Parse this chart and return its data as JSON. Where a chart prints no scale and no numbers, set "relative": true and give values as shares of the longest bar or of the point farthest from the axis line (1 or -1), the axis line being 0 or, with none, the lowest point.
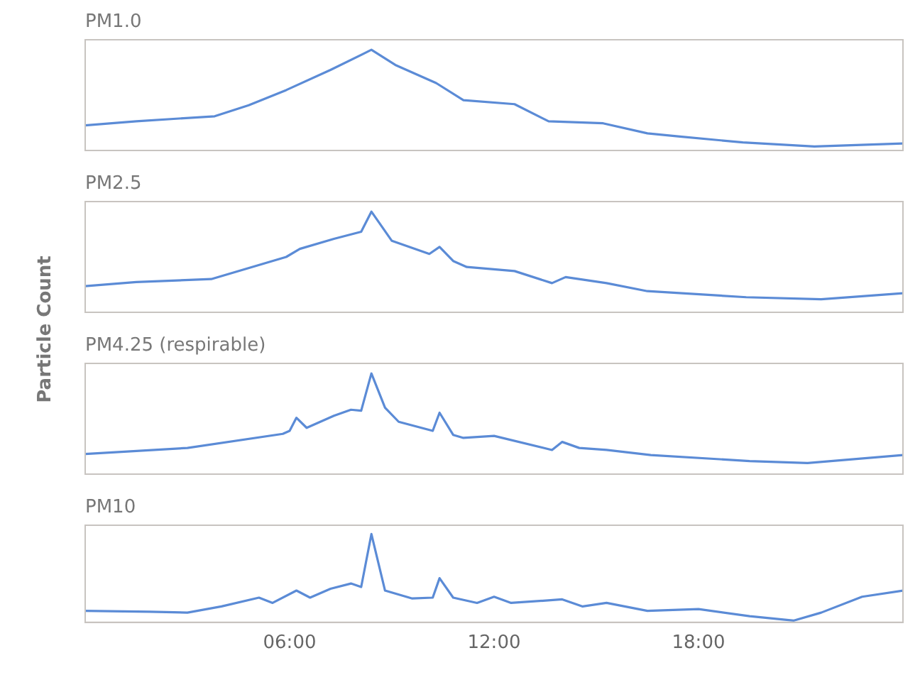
{
  "chart_data": [
    {
      "type": "line",
      "title": "PM1.0",
      "relative": true,
      "xlim": [
        0,
        24
      ],
      "xticks": [
        {
          "value": 6,
          "label": null
        },
        {
          "value": 12,
          "label": null
        },
        {
          "value": 18,
          "label": null
        }
      ],
      "tick_labels": false,
      "grid": false,
      "legend": false,
      "marker": "none",
      "line_style": "solid",
      "series": [
        {
          "color": "#5b8bd6",
          "x": [
            0,
            1.5,
            3.8,
            4.8,
            5.9,
            7.2,
            8.4,
            9.1,
            10.3,
            11.1,
            12.6,
            13.6,
            15.2,
            16.5,
            17.4,
            19.3,
            21.4,
            24
          ],
          "values": [
            0.25,
            0.29,
            0.34,
            0.45,
            0.6,
            0.8,
            1.0,
            0.85,
            0.67,
            0.5,
            0.46,
            0.29,
            0.27,
            0.17,
            0.14,
            0.08,
            0.04,
            0.07
          ]
        }
      ]
    },
    {
      "type": "line",
      "title": "PM2.5",
      "ylabel": "Particle Count",
      "relative": true,
      "xlim": [
        0,
        24
      ],
      "xticks": [
        {
          "value": 6,
          "label": null
        },
        {
          "value": 12,
          "label": null
        },
        {
          "value": 18,
          "label": null
        }
      ],
      "tick_labels": false,
      "grid": false,
      "legend": false,
      "marker": "none",
      "line_style": "solid",
      "series": [
        {
          "color": "#5b8bd6",
          "x": [
            0,
            1.5,
            3.7,
            5.9,
            6.3,
            7.3,
            8.1,
            8.4,
            9.0,
            10.1,
            10.4,
            10.8,
            11.2,
            12.6,
            13.7,
            14.1,
            15.3,
            16.5,
            19.4,
            21.6,
            24
          ],
          "values": [
            0.26,
            0.3,
            0.33,
            0.55,
            0.63,
            0.73,
            0.8,
            1.0,
            0.71,
            0.58,
            0.65,
            0.51,
            0.45,
            0.41,
            0.29,
            0.35,
            0.29,
            0.21,
            0.15,
            0.13,
            0.19
          ]
        }
      ]
    },
    {
      "type": "line",
      "title": "PM4.25 (respirable)",
      "relative": true,
      "xlim": [
        0,
        24
      ],
      "xticks": [
        {
          "value": 6,
          "label": null
        },
        {
          "value": 12,
          "label": null
        },
        {
          "value": 18,
          "label": null
        }
      ],
      "tick_labels": false,
      "grid": false,
      "legend": false,
      "marker": "none",
      "line_style": "solid",
      "series": [
        {
          "color": "#5b8bd6",
          "x": [
            0,
            3.0,
            5.8,
            6.0,
            6.2,
            6.5,
            7.3,
            7.8,
            8.1,
            8.4,
            8.8,
            9.2,
            10.2,
            10.4,
            10.8,
            11.1,
            12.0,
            13.7,
            14.0,
            14.5,
            15.3,
            16.6,
            19.5,
            21.2,
            24
          ],
          "values": [
            0.2,
            0.26,
            0.4,
            0.43,
            0.56,
            0.46,
            0.58,
            0.64,
            0.63,
            1.0,
            0.66,
            0.52,
            0.43,
            0.61,
            0.39,
            0.36,
            0.38,
            0.24,
            0.32,
            0.26,
            0.24,
            0.19,
            0.13,
            0.11,
            0.19
          ]
        }
      ]
    },
    {
      "type": "line",
      "title": "PM10",
      "relative": true,
      "xlim": [
        0,
        24
      ],
      "xticks": [
        {
          "value": 6,
          "label": "06:00"
        },
        {
          "value": 12,
          "label": "12:00"
        },
        {
          "value": 18,
          "label": "18:00"
        }
      ],
      "tick_labels": "x",
      "grid": false,
      "legend": false,
      "marker": "none",
      "line_style": "solid",
      "series": [
        {
          "color": "#5b8bd6",
          "x": [
            0,
            1.9,
            3.0,
            4.0,
            5.1,
            5.5,
            6.2,
            6.6,
            7.2,
            7.8,
            8.1,
            8.4,
            8.8,
            9.6,
            10.2,
            10.4,
            10.8,
            11.5,
            12.0,
            12.5,
            14.0,
            14.6,
            15.3,
            16.5,
            18.0,
            19.5,
            20.8,
            21.6,
            22.8,
            24
          ],
          "values": [
            0.13,
            0.12,
            0.11,
            0.18,
            0.28,
            0.22,
            0.36,
            0.28,
            0.38,
            0.44,
            0.4,
            1.0,
            0.36,
            0.27,
            0.28,
            0.5,
            0.28,
            0.22,
            0.29,
            0.22,
            0.26,
            0.18,
            0.22,
            0.13,
            0.15,
            0.07,
            0.02,
            0.11,
            0.29,
            0.36
          ]
        }
      ]
    }
  ]
}
